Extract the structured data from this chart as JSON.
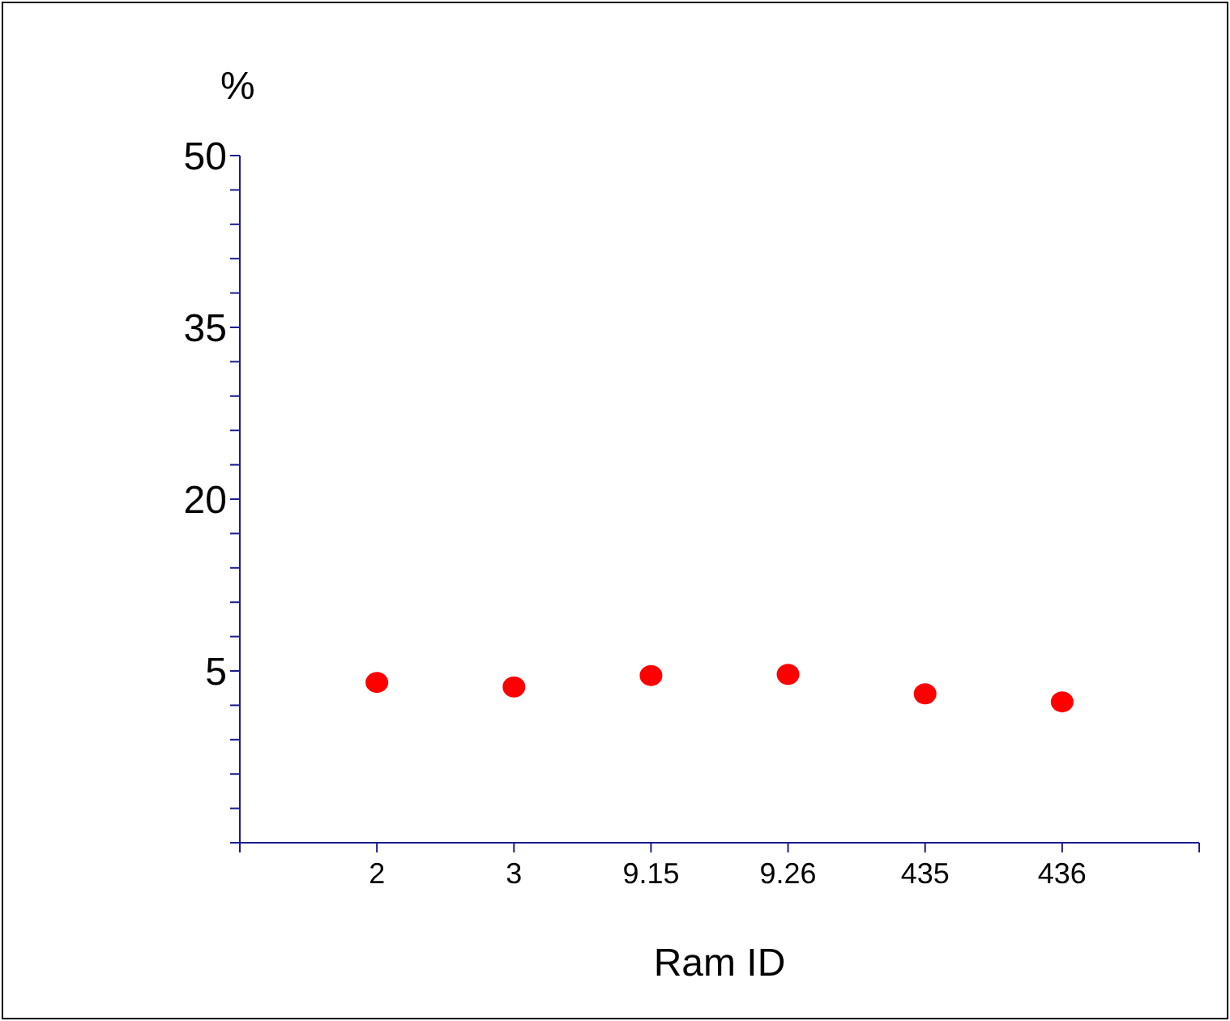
{
  "chart_data": {
    "type": "scatter",
    "ylabel": "%",
    "xlabel": "Ram ID",
    "categories": [
      "2",
      "3",
      "9.15",
      "9.26",
      "435",
      "436"
    ],
    "series": [
      {
        "color": "#ff0000",
        "values": [
          4.0,
          3.6,
          4.6,
          4.7,
          3.0,
          2.3
        ]
      }
    ],
    "ylim": [
      -10,
      50
    ],
    "yticks": [
      {
        "value": -10,
        "label": null
      },
      {
        "value": -7,
        "label": null
      },
      {
        "value": -4,
        "label": null
      },
      {
        "value": -1,
        "label": null
      },
      {
        "value": 2,
        "label": null
      },
      5,
      {
        "value": 8,
        "label": null
      },
      {
        "value": 11,
        "label": null
      },
      {
        "value": 14,
        "label": null
      },
      {
        "value": 17,
        "label": null
      },
      20,
      {
        "value": 23,
        "label": null
      },
      {
        "value": 26,
        "label": null
      },
      {
        "value": 29,
        "label": null
      },
      {
        "value": 32,
        "label": null
      },
      35,
      {
        "value": 38,
        "label": null
      },
      {
        "value": 41,
        "label": null
      },
      {
        "value": 44,
        "label": null
      },
      {
        "value": 47,
        "label": null
      },
      50
    ],
    "marker": "circle",
    "grid": false,
    "legend": false
  }
}
